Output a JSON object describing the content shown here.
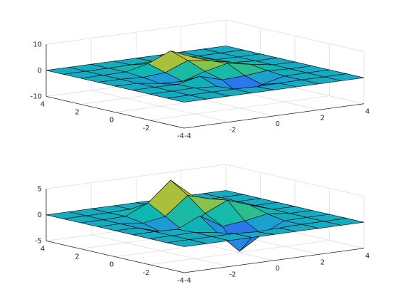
{
  "chart_data": [
    {
      "type": "surface",
      "x": [
        -4,
        -3,
        -2,
        -1,
        0,
        1,
        2,
        3,
        4
      ],
      "y": [
        -4,
        -3,
        -2,
        -1,
        0,
        1,
        2,
        3,
        4
      ],
      "z": [
        [
          0,
          0,
          0,
          0,
          0,
          0,
          0,
          0,
          0
        ],
        [
          0,
          0,
          0,
          -0.03,
          -0.25,
          -0.11,
          0,
          0,
          0
        ],
        [
          0,
          0,
          0.05,
          -0.59,
          -4.76,
          -2.1,
          -0.06,
          0,
          0
        ],
        [
          0,
          0,
          -0.13,
          1.86,
          -0.72,
          -0.27,
          0.5,
          0,
          0
        ],
        [
          0,
          -0.03,
          -1.33,
          -1.65,
          0.98,
          2.94,
          1.41,
          0.03,
          0
        ],
        [
          0,
          0,
          -0.48,
          0.23,
          3.69,
          2.43,
          0.58,
          0,
          0
        ],
        [
          0,
          0,
          0.08,
          2.1,
          5.86,
          2.21,
          0.13,
          0,
          0
        ],
        [
          0,
          0,
          0,
          0.11,
          0.3,
          0.11,
          0,
          0,
          0
        ],
        [
          0,
          0,
          0,
          0,
          0,
          0,
          0,
          0,
          0
        ]
      ],
      "xlim": [
        -4,
        4
      ],
      "ylim": [
        -4,
        4
      ],
      "zlim": [
        -10,
        10
      ],
      "xticks": [
        -4,
        -2,
        0,
        2,
        4
      ],
      "yticks": [
        -4,
        -2,
        0,
        2,
        4
      ],
      "zticks": [
        -10,
        0,
        10
      ],
      "grid": true,
      "edge_color": "#000000",
      "colormap": [
        "#3e26a8",
        "#4743f8",
        "#2c74f0",
        "#1e9bd8",
        "#0cb8b2",
        "#56c667",
        "#bcbe30",
        "#fac13a",
        "#f9fb0e"
      ]
    },
    {
      "type": "surface",
      "x": [
        -4,
        -3,
        -2,
        -1,
        0,
        1,
        2,
        3,
        4
      ],
      "y": [
        -4,
        -3,
        -2,
        -1,
        0,
        1,
        2,
        3,
        4
      ],
      "z": [
        [
          0,
          0,
          0,
          0,
          0,
          0,
          0,
          0,
          0
        ],
        [
          0,
          0,
          0,
          -0.03,
          -0.25,
          -0.11,
          0,
          0,
          0
        ],
        [
          0,
          0,
          0.05,
          -0.59,
          -4.76,
          -2.1,
          -0.06,
          0,
          0
        ],
        [
          0,
          0,
          -0.13,
          1.86,
          -0.72,
          -0.27,
          0.5,
          0,
          0
        ],
        [
          0,
          -0.03,
          -1.33,
          -1.65,
          0.98,
          2.94,
          1.41,
          0.03,
          0
        ],
        [
          0,
          0,
          -0.48,
          0.23,
          3.69,
          2.43,
          0.58,
          0,
          0
        ],
        [
          0,
          0,
          0.08,
          2.1,
          5.86,
          2.21,
          0.13,
          0,
          0
        ],
        [
          0,
          0,
          0,
          0.11,
          0.3,
          0.11,
          0,
          0,
          0
        ],
        [
          0,
          0,
          0,
          0,
          0,
          0,
          0,
          0,
          0
        ]
      ],
      "xlim": [
        -4,
        4
      ],
      "ylim": [
        -4,
        4
      ],
      "zlim": [
        -5,
        5
      ],
      "xticks": [
        -4,
        -2,
        0,
        2,
        4
      ],
      "yticks": [
        -4,
        -2,
        0,
        2,
        4
      ],
      "zticks": [
        -5,
        0,
        5
      ],
      "grid": true,
      "edge_color": "#000000",
      "colormap": [
        "#3e26a8",
        "#4743f8",
        "#2c74f0",
        "#1e9bd8",
        "#0cb8b2",
        "#56c667",
        "#bcbe30",
        "#fac13a",
        "#f9fb0e"
      ]
    }
  ]
}
